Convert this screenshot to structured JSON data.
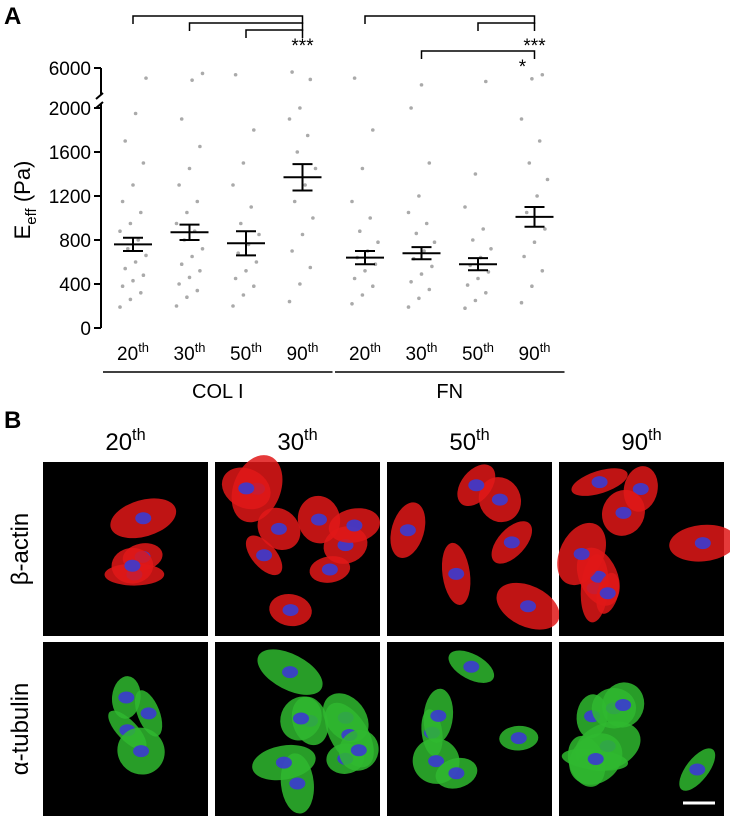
{
  "chart_data": {
    "type": "dot",
    "panel_label": "A",
    "y_label": [
      "E",
      "eff",
      " (Pa)"
    ],
    "ylim": [
      0,
      6000
    ],
    "y_break": 2000,
    "yticks": [
      0,
      400,
      800,
      1200,
      1600,
      2000,
      6000
    ],
    "point_color": "#aaaaaa",
    "mean_color": "#000000",
    "groups": [
      {
        "name": "COL I",
        "categories": [
          "20th",
          "30th",
          "50th",
          "90th"
        ],
        "means": [
          760,
          870,
          770,
          1370
        ],
        "errors": [
          60,
          70,
          110,
          120
        ],
        "points": [
          [
            190,
            260,
            320,
            380,
            430,
            480,
            540,
            600,
            660,
            720,
            800,
            880,
            950,
            1050,
            1150,
            1300,
            1500,
            1700,
            1950,
            4500
          ],
          [
            200,
            280,
            340,
            400,
            460,
            520,
            580,
            650,
            720,
            800,
            880,
            950,
            1050,
            1150,
            1300,
            1450,
            1650,
            1900,
            4200,
            5200
          ],
          [
            200,
            300,
            380,
            450,
            520,
            600,
            680,
            760,
            850,
            950,
            1100,
            1300,
            1500,
            1800,
            5000
          ],
          [
            240,
            400,
            550,
            700,
            850,
            1000,
            1150,
            1300,
            1450,
            1600,
            1750,
            1900,
            2000,
            4300,
            5400
          ]
        ]
      },
      {
        "name": "FN",
        "categories": [
          "20th",
          "30th",
          "50th",
          "90th"
        ],
        "means": [
          640,
          680,
          580,
          1010
        ],
        "errors": [
          60,
          55,
          55,
          90
        ],
        "points": [
          [
            220,
            300,
            380,
            450,
            520,
            580,
            640,
            700,
            780,
            880,
            1000,
            1150,
            1450,
            1800,
            4500
          ],
          [
            190,
            270,
            350,
            420,
            490,
            560,
            630,
            700,
            780,
            860,
            950,
            1050,
            1200,
            1500,
            2000,
            3500
          ],
          [
            180,
            250,
            320,
            390,
            450,
            510,
            570,
            640,
            720,
            800,
            900,
            1100,
            1400,
            4000
          ],
          [
            230,
            380,
            520,
            650,
            780,
            900,
            1050,
            1200,
            1350,
            1500,
            1700,
            1900,
            4400,
            5000
          ]
        ]
      }
    ],
    "annotations": [
      "***",
      "***",
      "*"
    ]
  },
  "panel_b": {
    "label": "B",
    "columns": [
      "20th",
      "30th",
      "50th",
      "90th"
    ],
    "rows": [
      "β-actin",
      "α-tubulin"
    ]
  }
}
